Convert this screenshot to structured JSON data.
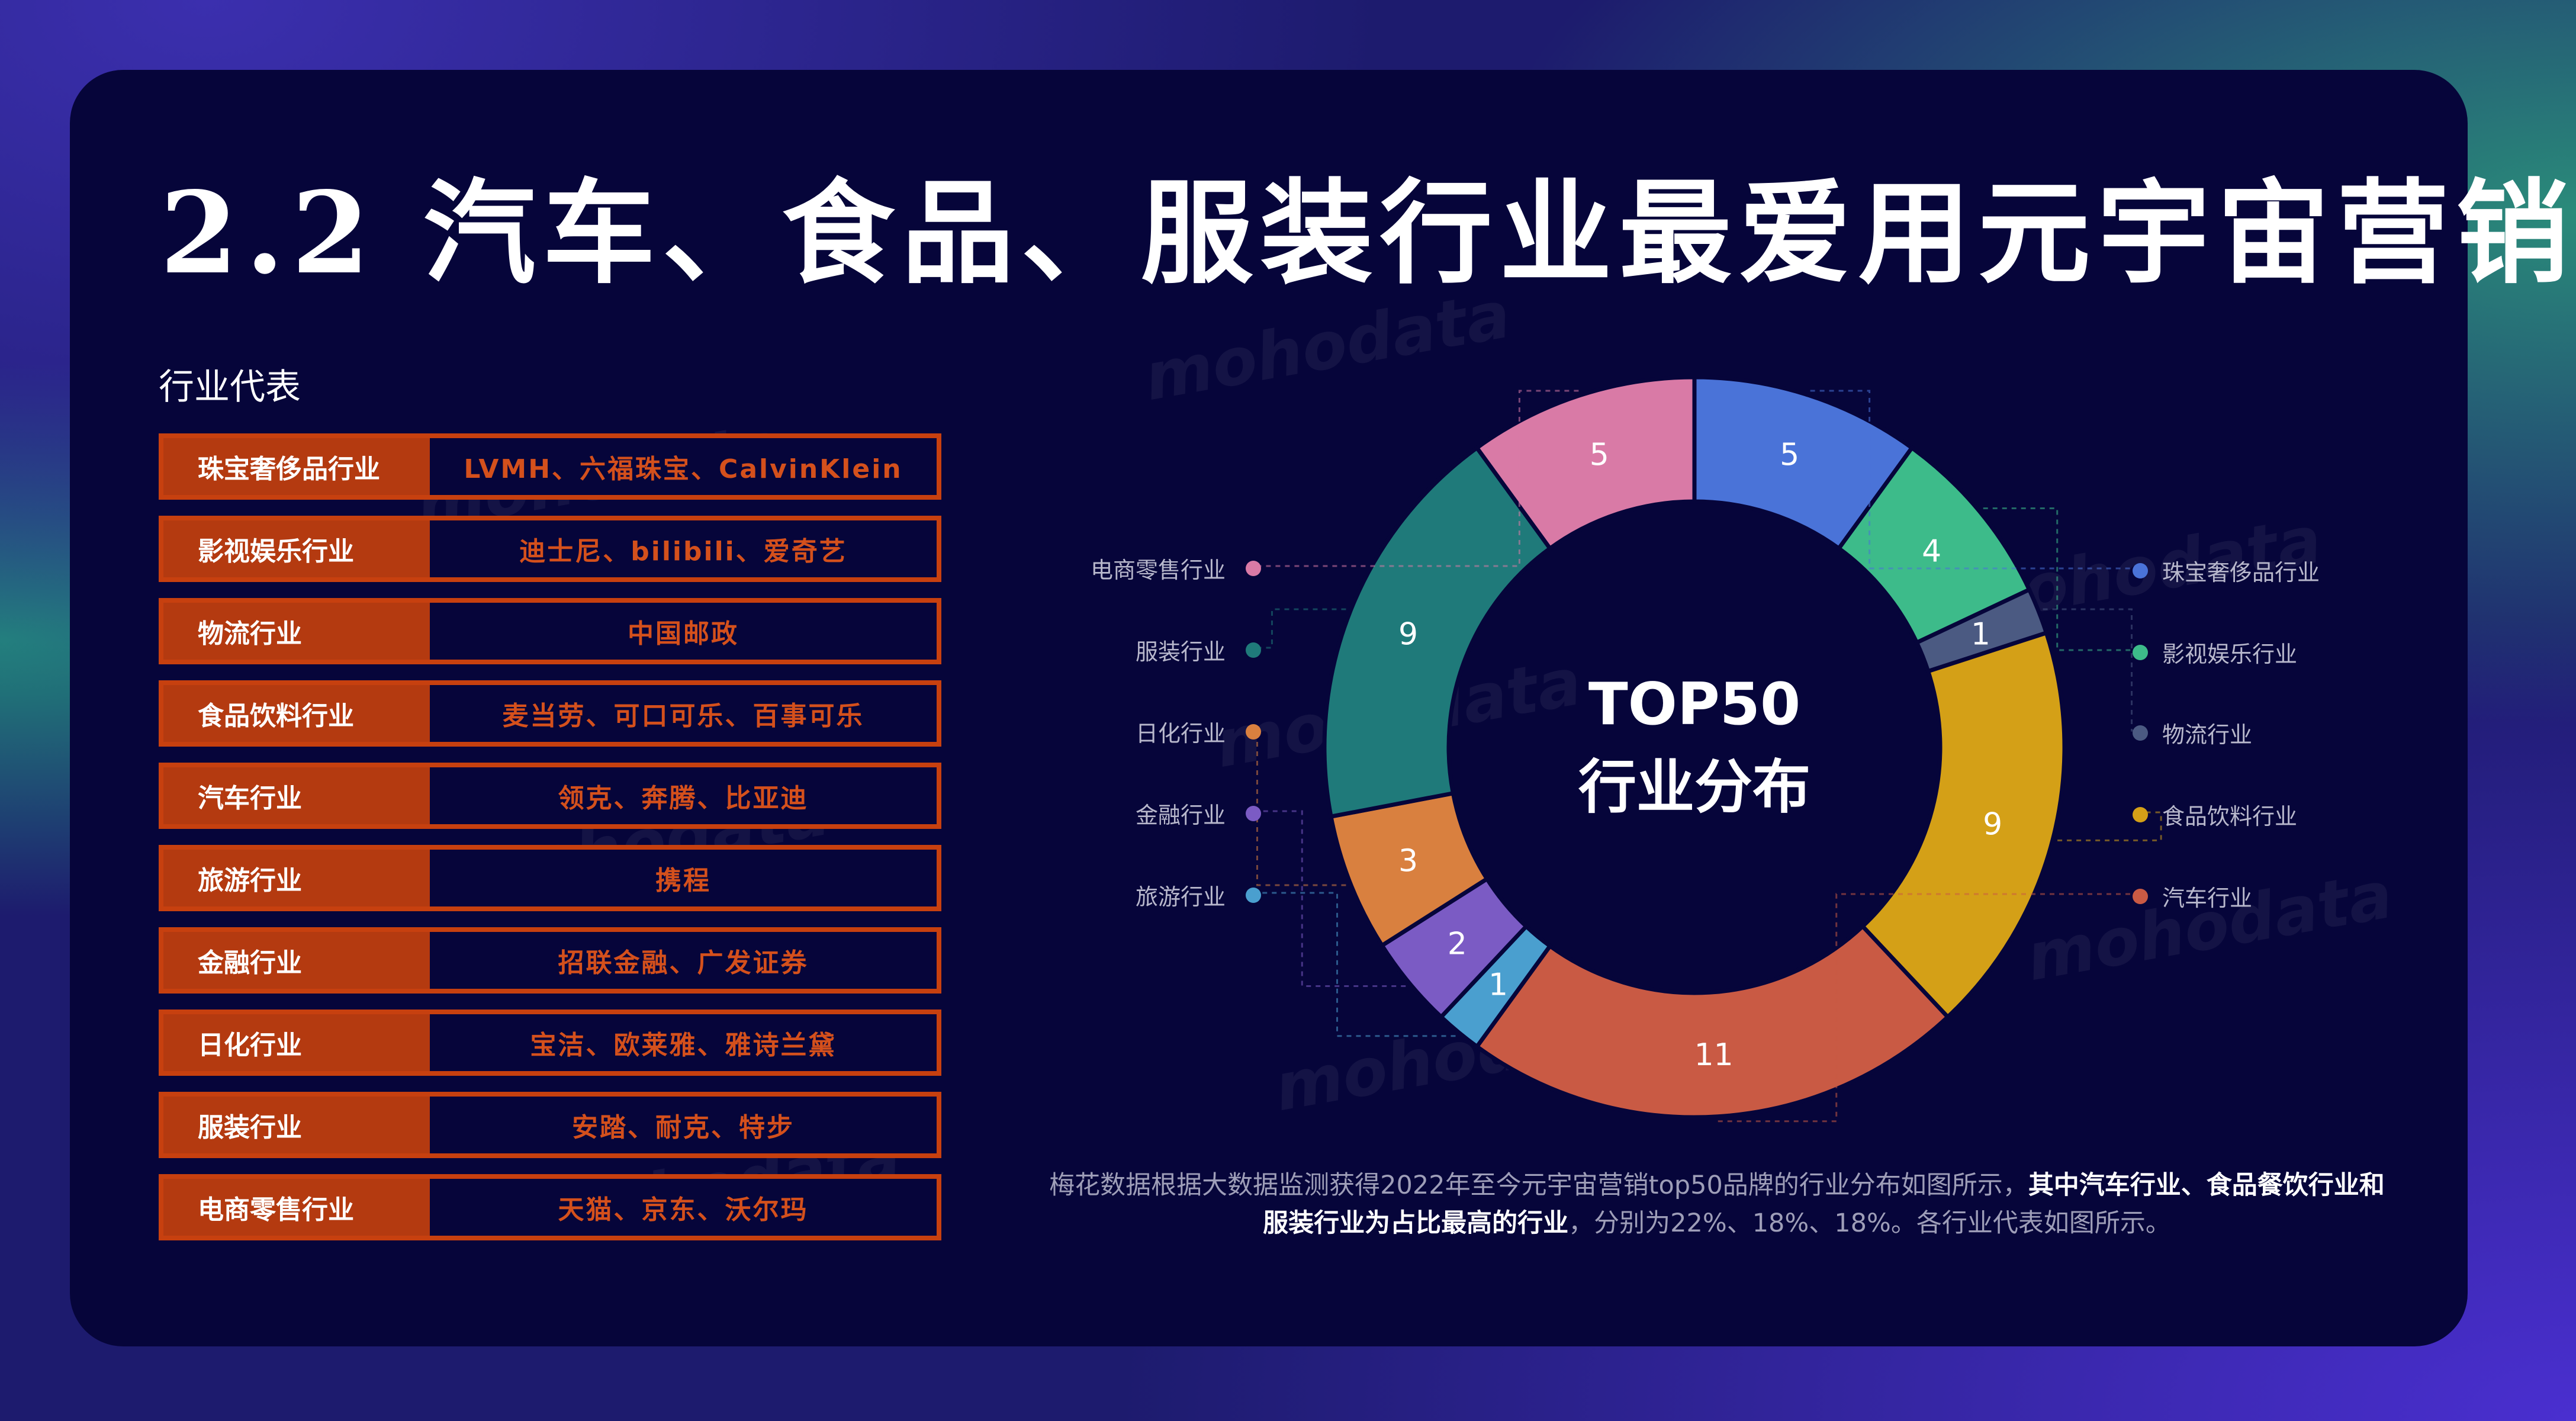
{
  "title": "2.2 汽车、食品、服装行业最爱用元宇宙营销",
  "section_label": "行业代表",
  "industries": [
    {
      "name": "珠宝奢侈品行业",
      "reps": "LVMH、六福珠宝、CalvinKlein"
    },
    {
      "name": "影视娱乐行业",
      "reps": "迪士尼、bilibili、爱奇艺"
    },
    {
      "name": "物流行业",
      "reps": "中国邮政"
    },
    {
      "name": "食品饮料行业",
      "reps": "麦当劳、可口可乐、百事可乐"
    },
    {
      "name": "汽车行业",
      "reps": "领克、奔腾、比亚迪"
    },
    {
      "name": "旅游行业",
      "reps": "携程"
    },
    {
      "name": "金融行业",
      "reps": "招联金融、广发证券"
    },
    {
      "name": "日化行业",
      "reps": "宝洁、欧莱雅、雅诗兰黛"
    },
    {
      "name": "服装行业",
      "reps": "安踏、耐克、特步"
    },
    {
      "name": "电商零售行业",
      "reps": "天猫、京东、沃尔玛"
    }
  ],
  "chart_data": {
    "type": "pie",
    "variant": "donut",
    "center_title_line1": "TOP50",
    "center_title_line2": "行业分布",
    "slices": [
      {
        "label": "珠宝奢侈品行业",
        "value": 5,
        "color": "#4a73d8"
      },
      {
        "label": "影视娱乐行业",
        "value": 4,
        "color": "#3dbb8a"
      },
      {
        "label": "物流行业",
        "value": 1,
        "color": "#4b5a82"
      },
      {
        "label": "食品饮料行业",
        "value": 9,
        "color": "#d4a017"
      },
      {
        "label": "汽车行业",
        "value": 11,
        "color": "#c95a44"
      },
      {
        "label": "旅游行业",
        "value": 1,
        "color": "#4a9fcf"
      },
      {
        "label": "金融行业",
        "value": 2,
        "color": "#7b5bc4"
      },
      {
        "label": "日化行业",
        "value": 3,
        "color": "#d9803f"
      },
      {
        "label": "服装行业",
        "value": 9,
        "color": "#1f7a7a"
      },
      {
        "label": "电商零售行业",
        "value": 5,
        "color": "#d97aa6"
      }
    ],
    "legend_left": [
      "电商零售行业",
      "服装行业",
      "日化行业",
      "金融行业",
      "旅游行业"
    ],
    "legend_right": [
      "珠宝奢侈品行业",
      "影视娱乐行业",
      "物流行业",
      "食品饮料行业",
      "汽车行业"
    ]
  },
  "footnote": {
    "part1": "梅花数据根据大数据监测获得2022年至今元宇宙营销top50品牌的行业分布如图所示，",
    "bold": "其中汽车行业、食品餐饮行业和服装行业为占比最高的行业",
    "part2": "，分别为22%、18%、18%。各行业代表如图所示。"
  },
  "watermark_text": "mohodata"
}
